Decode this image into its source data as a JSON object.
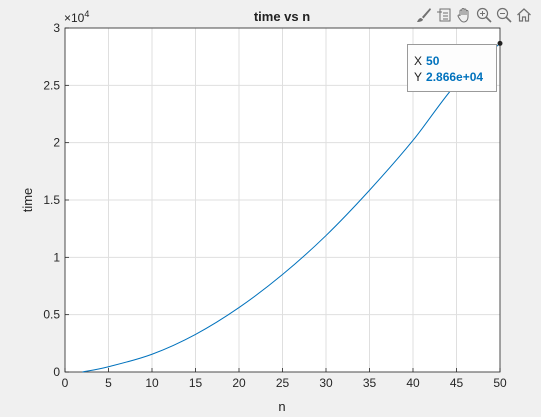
{
  "toolbar": {
    "icons": [
      "brush-icon",
      "insert-legend-icon",
      "pan-icon",
      "zoom-in-icon",
      "zoom-out-icon",
      "home-icon"
    ]
  },
  "datatip": {
    "x_label": "X",
    "x_value": "50",
    "y_label": "Y",
    "y_value": "2.866e+04"
  },
  "chart_data": {
    "type": "line",
    "title": "time vs n",
    "xlabel": "n",
    "ylabel": "time",
    "xlim": [
      0,
      50
    ],
    "ylim": [
      0,
      30000
    ],
    "x_ticks": [
      0,
      5,
      10,
      15,
      20,
      25,
      30,
      35,
      40,
      45,
      50
    ],
    "y_ticks": [
      0,
      5000,
      10000,
      15000,
      20000,
      25000,
      30000
    ],
    "y_tick_labels": [
      "0",
      "0.5",
      "1",
      "1.5",
      "2",
      "2.5",
      "3"
    ],
    "y_exponent_label": "×10",
    "y_exponent_power": "4",
    "grid": true,
    "line_color": "#0072bd",
    "series": [
      {
        "x": [
          2,
          5,
          10,
          15,
          20,
          25,
          30,
          35,
          40,
          45,
          50
        ],
        "y": [
          0,
          460,
          1550,
          3280,
          5620,
          8500,
          11900,
          15850,
          20200,
          25150,
          28660
        ]
      }
    ],
    "marked_point": {
      "x": 50,
      "y": 28660
    }
  }
}
